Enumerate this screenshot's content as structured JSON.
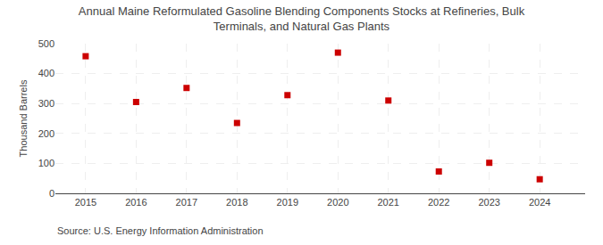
{
  "chart_data": {
    "type": "scatter",
    "title": "Annual Maine Reformulated Gasoline Blending Components Stocks at Refineries, Bulk\nTerminals, and Natural Gas Plants",
    "ylabel": "Thousand Barrels",
    "annotations": [
      "Source: U.S. Energy Information Administration"
    ],
    "x": [
      2015,
      2016,
      2017,
      2018,
      2019,
      2020,
      2021,
      2022,
      2023,
      2024
    ],
    "values": [
      458,
      305,
      352,
      235,
      328,
      470,
      310,
      73,
      102,
      47
    ],
    "color": "#cc0000",
    "marker": "square",
    "xlim": [
      2014.4,
      2024.9
    ],
    "xticks": [
      2015,
      2016,
      2017,
      2018,
      2019,
      2020,
      2021,
      2022,
      2023,
      2024
    ],
    "ylim": [
      0,
      500
    ],
    "yticks": [
      0,
      100,
      200,
      300,
      400,
      500
    ],
    "grid": true
  }
}
